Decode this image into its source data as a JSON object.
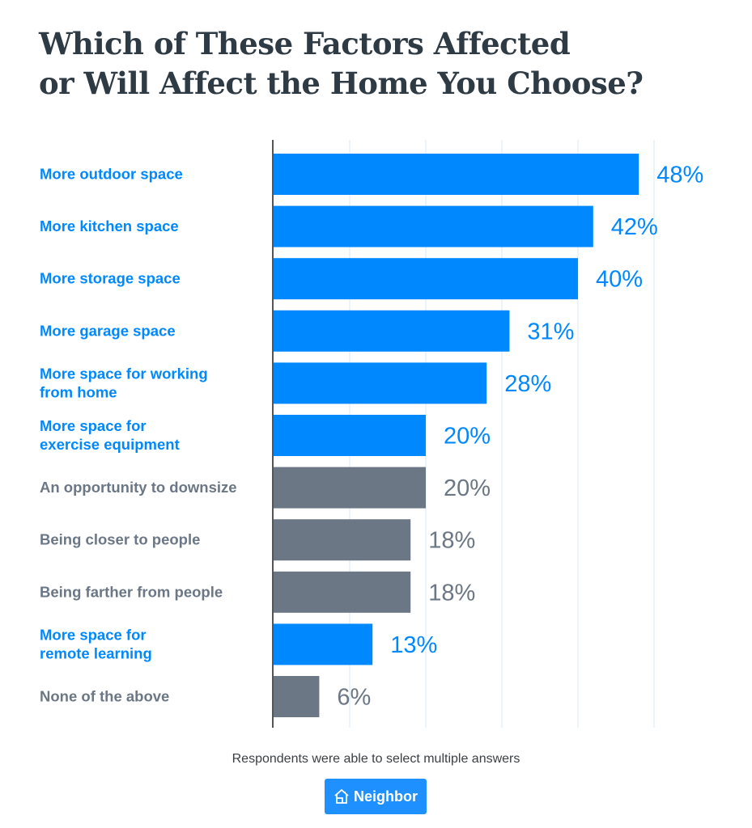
{
  "chart_data": {
    "type": "bar",
    "orientation": "horizontal",
    "title": "Which of These Factors Affected or Will Affect the Home You Choose?",
    "title_lines": [
      "Which of These Factors Affected",
      "or Will Affect the Home You Choose?"
    ],
    "categories": [
      [
        "More outdoor space"
      ],
      [
        "More kitchen space"
      ],
      [
        "More storage space"
      ],
      [
        "More garage space"
      ],
      [
        "More space for working",
        "from home"
      ],
      [
        "More space for",
        "exercise equipment"
      ],
      [
        "An opportunity to downsize"
      ],
      [
        "Being closer to people"
      ],
      [
        "Being farther from people"
      ],
      [
        "More space for",
        "remote learning"
      ],
      [
        "None of the above"
      ]
    ],
    "values": [
      48,
      42,
      40,
      31,
      28,
      20,
      20,
      18,
      18,
      13,
      6
    ],
    "value_labels": [
      "48%",
      "42%",
      "40%",
      "31%",
      "28%",
      "20%",
      "20%",
      "18%",
      "18%",
      "13%",
      "6%"
    ],
    "highlight": [
      true,
      true,
      true,
      true,
      true,
      true,
      false,
      false,
      false,
      true,
      false
    ],
    "xlim": [
      0,
      50
    ],
    "grid": true,
    "grid_step": 10,
    "colors": {
      "highlight": "#0088ff",
      "other": "#6b7785",
      "grid": "#e6f0fa",
      "axis": "#555555"
    },
    "note": "Respondents were able to select multiple answers"
  },
  "logo": {
    "text": "Neighbor",
    "icon": "house-icon"
  }
}
